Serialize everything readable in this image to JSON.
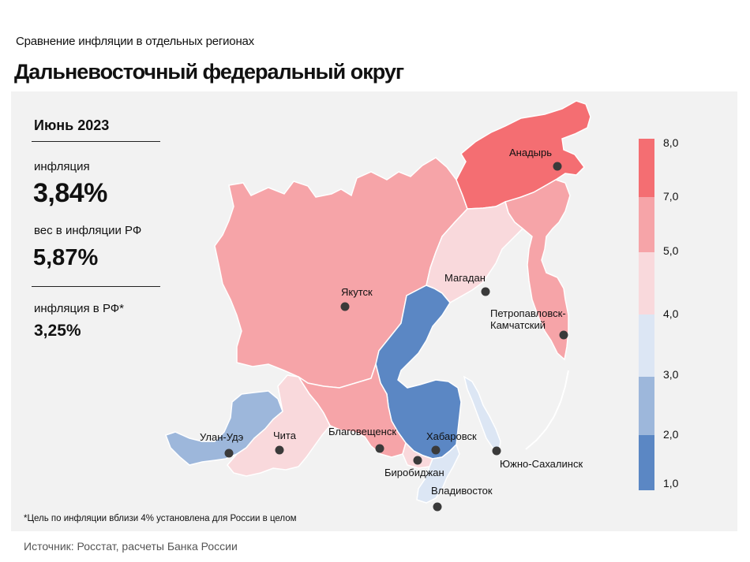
{
  "header": {
    "subtitle": "Сравнение  инфляции  в отдельных  регионах",
    "title": "Дальневосточный федеральный округ"
  },
  "info": {
    "period": "Июнь 2023",
    "inflation_label": "инфляция",
    "inflation_value": "3,84%",
    "weight_label": "вес в инфляции  РФ",
    "weight_value": "5,87%",
    "rf_label": "инфляция  в РФ*",
    "rf_value": "3,25%"
  },
  "footnote": "*Цель  по   инфляции вблизи  4%  установлена для   России  в   целом",
  "source": "Источник: Росстат, расчеты Банка  России",
  "legend": {
    "ticks": [
      "8,0",
      "7,0",
      "5,0",
      "4,0",
      "3,0",
      "2,0",
      "1,0"
    ],
    "bins": [
      {
        "from": 7.0,
        "to": 8.0,
        "color": "#f46e72"
      },
      {
        "from": 5.0,
        "to": 7.0,
        "color": "#f6a4a8"
      },
      {
        "from": 4.0,
        "to": 5.0,
        "color": "#f9d9dc"
      },
      {
        "from": 3.0,
        "to": 4.0,
        "color": "#dce6f4"
      },
      {
        "from": 2.0,
        "to": 3.0,
        "color": "#9db7db"
      },
      {
        "from": 1.0,
        "to": 2.0,
        "color": "#5b87c4"
      }
    ]
  },
  "cities": [
    {
      "name": "Анадырь"
    },
    {
      "name": "Магадан"
    },
    {
      "name": "Якутск"
    },
    {
      "name": "Петропавловск-"
    },
    {
      "name": "Камчатский"
    },
    {
      "name": "Улан-Удэ"
    },
    {
      "name": "Чита"
    },
    {
      "name": "Благовещенск"
    },
    {
      "name": "Хабаровск"
    },
    {
      "name": "Биробиджан"
    },
    {
      "name": "Южно-Сахалинск"
    },
    {
      "name": "Владивосток"
    }
  ]
}
